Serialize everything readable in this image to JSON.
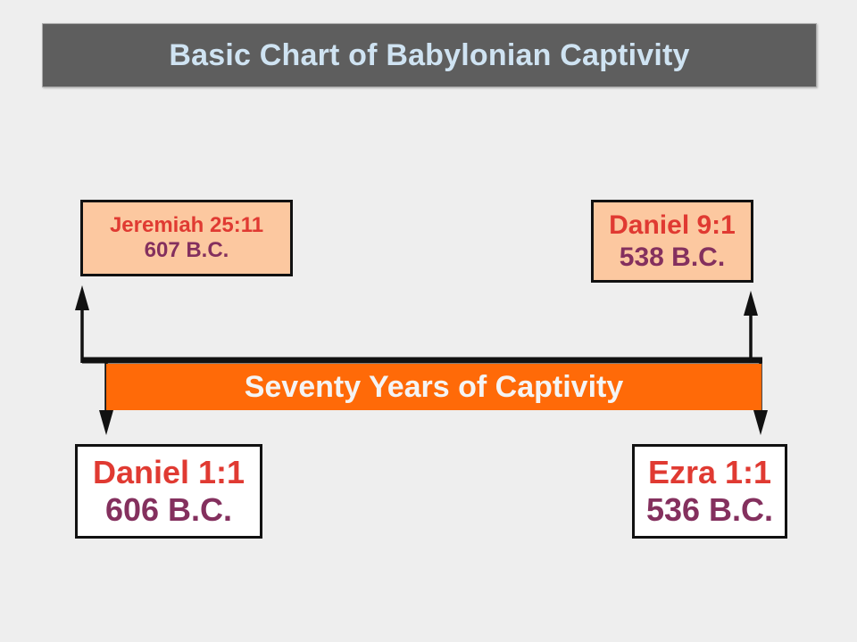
{
  "title": "Basic Chart of Babylonian Captivity",
  "band_label": "Seventy Years of Captivity",
  "colors": {
    "background": "#eeeeee",
    "title_bar": "#5e5e5e",
    "title_text": "#cfe3f2",
    "band": "#ff6a08",
    "band_text": "#f4f4f4",
    "top_box_fill": "#fcc8a0",
    "bottom_box_fill": "#ffffff",
    "reference_text": "#e03a32",
    "date_text": "#84305e",
    "line": "#111111"
  },
  "references": {
    "top_left": {
      "name": "Jeremiah 25:11",
      "date": "607 B.C."
    },
    "top_right": {
      "name": "Daniel 9:1",
      "date": "538 B.C."
    },
    "bottom_left": {
      "name": "Daniel 1:1",
      "date": "606 B.C."
    },
    "bottom_right": {
      "name": "Ezra 1:1",
      "date": "536 B.C."
    }
  }
}
